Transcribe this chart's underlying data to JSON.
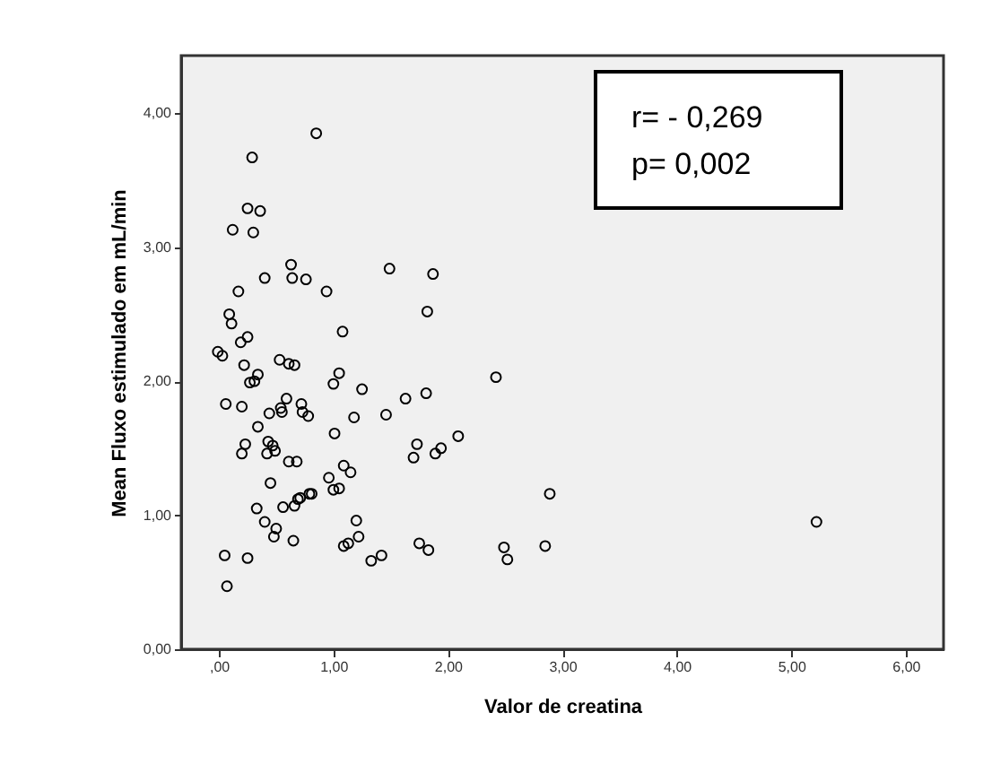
{
  "chart_data": {
    "type": "scatter",
    "xlabel": "Valor de creatina",
    "ylabel": "Mean Fluxo estimulado em mL/min",
    "annotations": [
      "r= - 0,269",
      "p= 0,002"
    ],
    "series": [
      {
        "color": "#000000",
        "x": [
          0.85,
          0.29,
          0.25,
          0.36,
          0.12,
          0.3,
          0.63,
          0.64,
          0.76,
          0.4,
          0.17,
          0.94,
          1.49,
          1.87,
          1.82,
          0.09,
          0.11,
          1.08,
          0.25,
          0.19,
          -0.01,
          0.03,
          0.53,
          0.22,
          0.61,
          0.66,
          0.34,
          1.05,
          0.27,
          0.31,
          1.0,
          1.25,
          2.42,
          0.06,
          0.2,
          0.59,
          0.44,
          0.54,
          0.55,
          0.72,
          0.73,
          0.78,
          0.34,
          1.18,
          1.46,
          1.63,
          1.81,
          1.01,
          0.23,
          0.2,
          0.42,
          0.43,
          0.47,
          0.49,
          0.61,
          0.68,
          1.73,
          1.7,
          1.89,
          1.94,
          2.09,
          1.09,
          1.15,
          0.45,
          0.96,
          1.0,
          1.05,
          0.56,
          0.33,
          0.66,
          0.69,
          0.71,
          0.79,
          0.81,
          0.4,
          1.2,
          0.5,
          0.48,
          0.65,
          1.22,
          1.09,
          1.13,
          1.75,
          1.83,
          1.33,
          1.42,
          0.05,
          0.25,
          0.07,
          2.89,
          5.22,
          2.49,
          2.52,
          2.85
        ],
        "values": [
          3.85,
          3.67,
          3.29,
          3.27,
          3.13,
          3.11,
          2.87,
          2.77,
          2.76,
          2.77,
          2.67,
          2.67,
          2.84,
          2.8,
          2.52,
          2.5,
          2.43,
          2.37,
          2.33,
          2.29,
          2.22,
          2.19,
          2.16,
          2.12,
          2.13,
          2.12,
          2.05,
          2.06,
          1.99,
          2.0,
          1.98,
          1.94,
          2.03,
          1.83,
          1.81,
          1.87,
          1.76,
          1.8,
          1.77,
          1.83,
          1.77,
          1.74,
          1.66,
          1.73,
          1.75,
          1.87,
          1.91,
          1.61,
          1.53,
          1.46,
          1.46,
          1.55,
          1.52,
          1.48,
          1.4,
          1.4,
          1.53,
          1.43,
          1.46,
          1.5,
          1.59,
          1.37,
          1.32,
          1.24,
          1.28,
          1.19,
          1.2,
          1.06,
          1.05,
          1.07,
          1.12,
          1.13,
          1.16,
          1.16,
          0.95,
          0.96,
          0.9,
          0.84,
          0.81,
          0.84,
          0.77,
          0.79,
          0.79,
          0.74,
          0.66,
          0.7,
          0.7,
          0.68,
          0.47,
          1.16,
          0.95,
          0.76,
          0.67,
          0.77
        ]
      }
    ],
    "marker": "circle",
    "grid": false,
    "legend": false,
    "xlim": [
      -0.33,
      6.33
    ],
    "xticks": [
      {
        "value": 0,
        "label": ",00"
      },
      {
        "value": 1,
        "label": "1,00"
      },
      {
        "value": 2,
        "label": "2,00"
      },
      {
        "value": 3,
        "label": "3,00"
      },
      {
        "value": 4,
        "label": "4,00"
      },
      {
        "value": 5,
        "label": "5,00"
      },
      {
        "value": 6,
        "label": "6,00"
      }
    ],
    "ylim": [
      0,
      4.43
    ],
    "yticks": [
      {
        "value": 0,
        "label": "0,00"
      },
      {
        "value": 1,
        "label": "1,00"
      },
      {
        "value": 2,
        "label": "2,00"
      },
      {
        "value": 3,
        "label": "3,00"
      },
      {
        "value": 4,
        "label": "4,00"
      }
    ]
  }
}
